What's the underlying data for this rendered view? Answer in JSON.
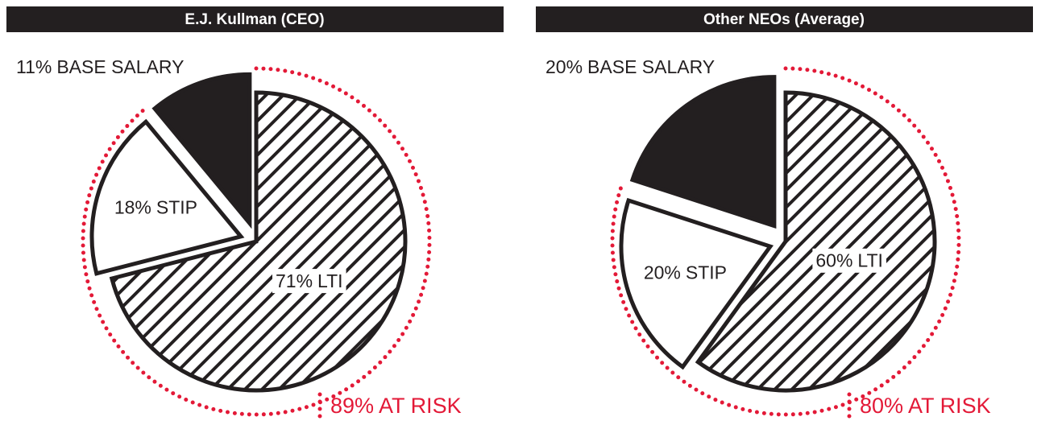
{
  "chart_data": [
    {
      "type": "pie",
      "title": "E.J. Kullman (CEO)",
      "categories": [
        "LTI",
        "STIP",
        "BASE SALARY"
      ],
      "values": [
        71,
        18,
        11
      ],
      "value_labels": [
        "71%",
        "18%",
        "11%"
      ],
      "colors": [
        "#231f20",
        "#ffffff",
        "#231f20"
      ],
      "hatch": [
        true,
        false,
        false
      ],
      "annotation": "89% AT RISK"
    },
    {
      "type": "pie",
      "title": "Other NEOs (Average)",
      "categories": [
        "LTI",
        "STIP",
        "BASE SALARY"
      ],
      "values": [
        60,
        20,
        20
      ],
      "value_labels": [
        "60%",
        "20%",
        "20%"
      ],
      "colors": [
        "#231f20",
        "#ffffff",
        "#231f20"
      ],
      "hatch": [
        true,
        false,
        false
      ],
      "annotation": "80% AT RISK"
    }
  ]
}
